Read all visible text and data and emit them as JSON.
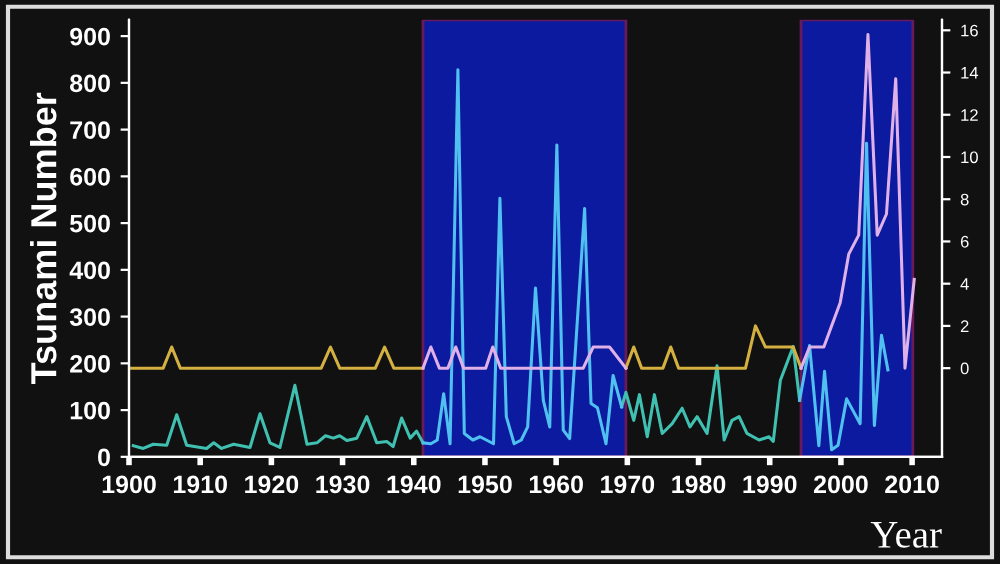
{
  "chart_data": {
    "type": "line",
    "xlabel": "Year",
    "ylabel": "Tsunami Number",
    "xlim": [
      1900,
      2014.2
    ],
    "xticks": [
      1900,
      1910,
      1920,
      1930,
      1940,
      1950,
      1960,
      1970,
      1980,
      1990,
      2000,
      2010
    ],
    "ylim": [
      0,
      935
    ],
    "yticks": [
      0,
      100,
      200,
      300,
      400,
      500,
      600,
      700,
      800,
      900
    ],
    "y2lim": [
      -4.2,
      16.5
    ],
    "y2ticks": [
      0,
      2,
      4,
      6,
      8,
      10,
      12,
      14,
      16
    ],
    "grid": false,
    "legend": false,
    "marker": "none",
    "line_style": "solid",
    "bands": [
      {
        "axis": "x",
        "from": 1941.3,
        "to": 1969.8,
        "color": "#0b1a9e"
      },
      {
        "axis": "x",
        "from": 1994.4,
        "to": 2010.1,
        "color": "#0b1a9e"
      }
    ],
    "series": [
      {
        "color": "#40c0b0",
        "x": [
          1900.6,
          1902,
          1903.4,
          1905.3,
          1906.7,
          1908.1,
          1910.9,
          1911.9,
          1913,
          1914.7,
          1917,
          1918.4,
          1919.8,
          1921.2,
          1923.3,
          1925,
          1926.4,
          1927.6,
          1928.7,
          1929.6,
          1930.6,
          1932,
          1933.4,
          1934.8,
          1936.2,
          1937.1,
          1938.3,
          1939.5,
          1940.4,
          1941.3,
          1955,
          1969.2,
          1969.8,
          1970.9,
          1971.7,
          1972.8,
          1973.8,
          1974.9,
          1976.3,
          1977.7,
          1978.8,
          1979.8,
          1981.2,
          1982.6,
          1983.6,
          1984.7,
          1985.7,
          1986.8,
          1988.5,
          1989.9,
          1990.5,
          1991.5,
          1993.3,
          1994.2
        ],
        "values": [
          24,
          18,
          27,
          25,
          90,
          25,
          18,
          30,
          18,
          27,
          20,
          92,
          30,
          20,
          153,
          27,
          30,
          45,
          40,
          45,
          35,
          40,
          86,
          30,
          33,
          22,
          83,
          40,
          55,
          30,
          null,
          107,
          138,
          78,
          133,
          43,
          133,
          50,
          71,
          104,
          64,
          86,
          50,
          195,
          36,
          78,
          86,
          50,
          36,
          43,
          33,
          164,
          236,
          121
        ]
      },
      {
        "color": "#50c0f0",
        "x": [
          1941.3,
          1942.4,
          1943.3,
          1944.2,
          1945.1,
          1946.2,
          1947.1,
          1948.3,
          1949.3,
          1950.2,
          1951.2,
          1952.1,
          1953,
          1954.1,
          1955.1,
          1956,
          1957.1,
          1958.2,
          1959.1,
          1960.1,
          1961,
          1961.9,
          1964,
          1964.9,
          1965.8,
          1967,
          1968,
          1969.2,
          1980,
          1994.2,
          1995.6,
          1996.9,
          1997.7,
          1998.7,
          1999.6,
          2000.8,
          2002.7,
          2003.6,
          2004.7,
          2005.7,
          2006.6
        ],
        "values": [
          30,
          28,
          36,
          135,
          28,
          828,
          50,
          36,
          43,
          36,
          28,
          553,
          86,
          28,
          36,
          64,
          361,
          121,
          64,
          667,
          57,
          39,
          531,
          114,
          105,
          28,
          174,
          107,
          null,
          121,
          238,
          24,
          183,
          15,
          25,
          124,
          71,
          671,
          67,
          260,
          186
        ]
      },
      {
        "color": "#d4b040",
        "axis": "y2",
        "x": [
          1900,
          1904.8,
          1906,
          1907.2,
          1927,
          1928.3,
          1929.6,
          1934.6,
          1935.9,
          1937.2,
          1941.3,
          1955,
          1969.8,
          1970.9,
          1972,
          1975,
          1976.1,
          1977.2,
          1986.6,
          1988,
          1989.4,
          1993.3,
          1994.4
        ],
        "values": [
          0,
          0,
          1,
          0,
          0,
          1,
          0,
          0,
          1,
          0,
          0,
          null,
          0,
          1,
          0,
          0,
          1,
          0,
          0,
          2,
          1,
          1,
          0
        ]
      },
      {
        "color": "#e0b0e8",
        "axis": "y2",
        "x": [
          1941.3,
          1942.4,
          1943.6,
          1944.8,
          1945.9,
          1947,
          1950.1,
          1951.1,
          1952.2,
          1963.8,
          1965.2,
          1967.5,
          1969.8,
          1980,
          1994.4,
          1995.6,
          1997.6,
          1999.9,
          2001.1,
          2002.5,
          2003.8,
          2005.1,
          2006.4,
          2007.7,
          2009,
          2010.3
        ],
        "values": [
          0,
          1,
          0,
          0,
          1,
          0,
          0,
          1,
          0,
          0,
          1,
          1,
          0,
          null,
          0,
          1,
          1,
          3.1,
          5.4,
          6.3,
          15.8,
          6.3,
          7.3,
          13.7,
          0,
          4.2
        ]
      }
    ]
  }
}
